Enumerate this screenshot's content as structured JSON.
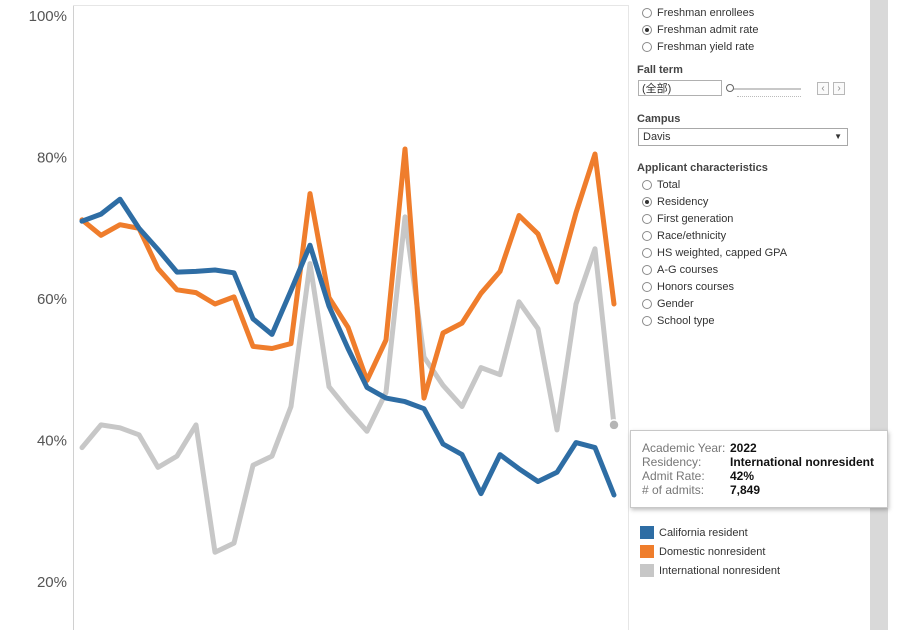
{
  "chart_data": {
    "type": "line",
    "ylim": [
      0.15,
      1.0
    ],
    "y_ticks": [
      {
        "value": 1.0,
        "label": "100%"
      },
      {
        "value": 0.8,
        "label": "80%"
      },
      {
        "value": 0.6,
        "label": "60%"
      },
      {
        "value": 0.4,
        "label": "40%"
      },
      {
        "value": 0.2,
        "label": "20%"
      }
    ],
    "grid": false,
    "legend_position": "right",
    "series": [
      {
        "name": "California resident",
        "color": "#2e6da4",
        "values": [
          0.71,
          0.72,
          0.741,
          0.7,
          0.67,
          0.638,
          0.639,
          0.641,
          0.637,
          0.572,
          0.55,
          0.612,
          0.676,
          0.59,
          0.53,
          0.475,
          0.46,
          0.455,
          0.445,
          0.395,
          0.38,
          0.325,
          0.38,
          0.36,
          0.342,
          0.355,
          0.397,
          0.39,
          0.323
        ]
      },
      {
        "name": "Domestic nonresident",
        "color": "#ef7d2c",
        "values": [
          0.712,
          0.69,
          0.705,
          0.7,
          0.643,
          0.613,
          0.609,
          0.593,
          0.603,
          0.533,
          0.53,
          0.537,
          0.749,
          0.602,
          0.56,
          0.485,
          0.542,
          0.812,
          0.46,
          0.552,
          0.566,
          0.608,
          0.639,
          0.718,
          0.692,
          0.624,
          0.722,
          0.805,
          0.593
        ]
      },
      {
        "name": "International nonresident",
        "color": "#c7c7c7",
        "values": [
          0.39,
          0.422,
          0.418,
          0.408,
          0.362,
          0.378,
          0.422,
          0.242,
          0.255,
          0.365,
          0.378,
          0.448,
          0.65,
          0.476,
          0.443,
          0.413,
          0.468,
          0.716,
          0.518,
          0.478,
          0.448,
          0.503,
          0.493,
          0.596,
          0.558,
          0.415,
          0.593,
          0.671,
          0.422
        ]
      }
    ],
    "hover_point": {
      "series": 2,
      "index": 28
    }
  },
  "measure_options": [
    {
      "label": "Freshman enrollees",
      "selected": false
    },
    {
      "label": "Freshman admit rate",
      "selected": true
    },
    {
      "label": "Freshman yield rate",
      "selected": false
    }
  ],
  "fall_term": {
    "title": "Fall term",
    "value": "(全部)",
    "prev_symbol": "‹",
    "next_symbol": "›"
  },
  "campus": {
    "title": "Campus",
    "value": "Davis",
    "caret": "▼"
  },
  "applicant": {
    "title": "Applicant characteristics",
    "options": [
      {
        "label": "Total",
        "selected": false
      },
      {
        "label": "Residency",
        "selected": true
      },
      {
        "label": "First generation",
        "selected": false
      },
      {
        "label": "Race/ethnicity",
        "selected": false
      },
      {
        "label": "HS weighted, capped GPA",
        "selected": false
      },
      {
        "label": "A-G courses",
        "selected": false
      },
      {
        "label": "Honors courses",
        "selected": false
      },
      {
        "label": "Gender",
        "selected": false
      },
      {
        "label": "School type",
        "selected": false
      }
    ]
  },
  "tooltip": {
    "rows": [
      {
        "key": "Academic Year:",
        "value": "2022"
      },
      {
        "key": "Residency:",
        "value": "International nonresident"
      },
      {
        "key": "Admit Rate:",
        "value": "42%"
      },
      {
        "key": "# of admits:",
        "value": "7,849"
      }
    ]
  }
}
